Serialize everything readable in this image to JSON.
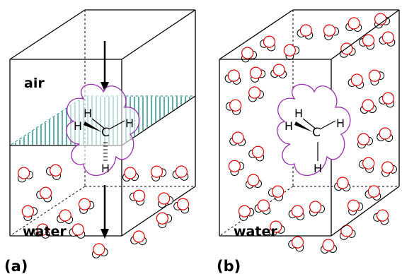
{
  "panel_a": {
    "label": "(a)",
    "upper_phase": "air",
    "lower_phase": "water",
    "solute": {
      "carbon": "C",
      "hydrogen": "H"
    }
  },
  "panel_b": {
    "label": "(b)",
    "phase": "water",
    "solute": {
      "carbon": "C",
      "hydrogen": "H"
    }
  },
  "colors": {
    "edge": "#000000",
    "interface_hatch": "#1a8a8a",
    "cavity": "#9b30b0",
    "oxygen": "#e00000",
    "hydrogen": "#000000"
  }
}
